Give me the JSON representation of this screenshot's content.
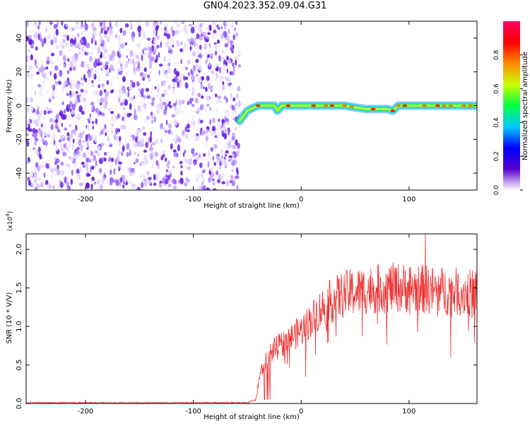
{
  "figure": {
    "title": "GN04.2023.352.09.04.G31"
  },
  "chart_data": [
    {
      "type": "heatmap",
      "xlabel": "Height of straight line (km)",
      "ylabel": "Frequency (Hz)",
      "xlim": [
        -255,
        163
      ],
      "ylim": [
        -50,
        50
      ],
      "xticks": [
        -200,
        -100,
        0,
        100
      ],
      "yticks": [
        -40,
        -20,
        0,
        20,
        40
      ],
      "noise_region_x": [
        -255,
        -57
      ],
      "signal_track": [
        {
          "x": -57,
          "y": -9
        },
        {
          "x": -50,
          "y": -3
        },
        {
          "x": -40,
          "y": 0
        },
        {
          "x": -25,
          "y": 0
        },
        {
          "x": -22,
          "y": -3
        },
        {
          "x": -18,
          "y": 0
        },
        {
          "x": 0,
          "y": 0
        },
        {
          "x": 40,
          "y": 0
        },
        {
          "x": 60,
          "y": -2
        },
        {
          "x": 80,
          "y": -2
        },
        {
          "x": 85,
          "y": -3
        },
        {
          "x": 90,
          "y": 0
        },
        {
          "x": 163,
          "y": 0
        }
      ],
      "colorbar": {
        "label": "Normalized spectral amplitude",
        "ticks": [
          "0.0",
          "0.2",
          "0.4",
          "0.6",
          "0.8"
        ],
        "range": [
          0,
          1
        ],
        "colors": [
          "#ffffff",
          "#5500cc",
          "#0000ff",
          "#00ccff",
          "#00ff44",
          "#ccff00",
          "#ff8800",
          "#ff0000",
          "#ff0066"
        ]
      }
    },
    {
      "type": "line",
      "xlabel": "Height of straight line (km)",
      "ylabel": "SNR (10 * V/V)",
      "y_multiplier": "(x10",
      "y_multiplier_exp": "4",
      "y_multiplier_close": ")",
      "xlim": [
        -255,
        163
      ],
      "ylim": [
        0,
        2.2
      ],
      "xticks": [
        -200,
        -100,
        0,
        100
      ],
      "yticks": [
        "0.0",
        "0.5",
        "1.0",
        "1.5",
        "2.0"
      ],
      "ytick_values": [
        0,
        0.5,
        1.0,
        1.5,
        2.0
      ],
      "color": "#ee3030",
      "envelope": [
        {
          "x": -255,
          "y": 0.01
        },
        {
          "x": -50,
          "y": 0.01
        },
        {
          "x": -42,
          "y": 0.05
        },
        {
          "x": -38,
          "y": 0.4
        },
        {
          "x": -30,
          "y": 0.65
        },
        {
          "x": -20,
          "y": 0.75
        },
        {
          "x": -10,
          "y": 0.85
        },
        {
          "x": 0,
          "y": 0.95
        },
        {
          "x": 10,
          "y": 1.1
        },
        {
          "x": 20,
          "y": 1.25
        },
        {
          "x": 30,
          "y": 1.35
        },
        {
          "x": 40,
          "y": 1.42
        },
        {
          "x": 60,
          "y": 1.47
        },
        {
          "x": 80,
          "y": 1.5
        },
        {
          "x": 100,
          "y": 1.5
        },
        {
          "x": 120,
          "y": 1.47
        },
        {
          "x": 140,
          "y": 1.45
        },
        {
          "x": 163,
          "y": 1.43
        }
      ],
      "peak": {
        "x": 115,
        "y": 2.2
      }
    }
  ]
}
